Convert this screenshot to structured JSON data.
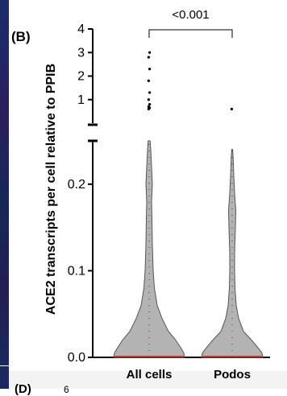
{
  "panel_label": "(B)",
  "panel_label_next": "(D)",
  "next_tick_fragment": "6",
  "colors": {
    "violin_fill": "#b3b3b3",
    "violin_stroke": "#555555",
    "median_line": "#c0392b",
    "outlier": "#000000",
    "left_strip": "#1b2d6b"
  },
  "chart_data": {
    "type": "violin",
    "ylabel": "ACE2 transcripts per cell relative to PPIB",
    "categories": [
      "All cells",
      "Podos"
    ],
    "axis_break": {
      "lower_segment": [
        0,
        0.25
      ],
      "upper_segment": [
        0,
        4
      ]
    },
    "yticks_lower": [
      {
        "value": 0.0,
        "label": "0.0"
      },
      {
        "value": 0.1,
        "label": "0.1"
      },
      {
        "value": 0.2,
        "label": "0.2"
      }
    ],
    "yticks_upper": [
      {
        "value": 1,
        "label": "1"
      },
      {
        "value": 2,
        "label": "2"
      },
      {
        "value": 3,
        "label": "3"
      },
      {
        "value": 4,
        "label": "4"
      }
    ],
    "significance": {
      "label": "<0.001",
      "between": [
        "All cells",
        "Podos"
      ]
    },
    "series": [
      {
        "category": "All cells",
        "median": 0.0,
        "max": 3.1,
        "density": [
          [
            0.0,
            0.44
          ],
          [
            0.005,
            0.43
          ],
          [
            0.01,
            0.4
          ],
          [
            0.02,
            0.33
          ],
          [
            0.03,
            0.24
          ],
          [
            0.045,
            0.16
          ],
          [
            0.06,
            0.1
          ],
          [
            0.08,
            0.065
          ],
          [
            0.1,
            0.05
          ],
          [
            0.13,
            0.04
          ],
          [
            0.16,
            0.035
          ],
          [
            0.18,
            0.03
          ],
          [
            0.2,
            0.04
          ],
          [
            0.22,
            0.03
          ],
          [
            0.24,
            0.02
          ],
          [
            0.25,
            0.012
          ]
        ],
        "outliers": [
          0.6,
          0.65,
          0.7,
          0.8,
          1.0,
          1.3,
          1.8,
          2.3,
          2.8,
          3.0
        ]
      },
      {
        "category": "Podos",
        "median": 0.0,
        "max": 0.6,
        "density": [
          [
            0.0,
            0.38
          ],
          [
            0.005,
            0.37
          ],
          [
            0.01,
            0.33
          ],
          [
            0.02,
            0.24
          ],
          [
            0.03,
            0.14
          ],
          [
            0.045,
            0.08
          ],
          [
            0.06,
            0.05
          ],
          [
            0.08,
            0.035
          ],
          [
            0.1,
            0.03
          ],
          [
            0.12,
            0.03
          ],
          [
            0.15,
            0.04
          ],
          [
            0.17,
            0.045
          ],
          [
            0.19,
            0.03
          ],
          [
            0.21,
            0.02
          ],
          [
            0.23,
            0.012
          ],
          [
            0.24,
            0.006
          ]
        ],
        "outliers": [
          0.6
        ]
      }
    ]
  }
}
